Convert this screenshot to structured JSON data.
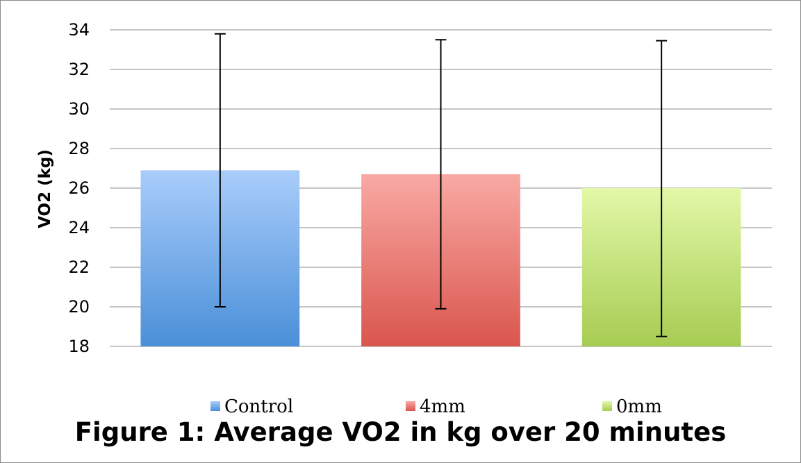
{
  "caption": "Figure 1: Average VO2 in kg over 20 minutes",
  "chart_data": {
    "type": "bar",
    "title": "",
    "xlabel": "",
    "ylabel": "VO2 (kg)",
    "ylim": [
      18,
      34
    ],
    "yticks": [
      18,
      20,
      22,
      24,
      26,
      28,
      30,
      32,
      34
    ],
    "grid": true,
    "legend_position": "bottom",
    "series": [
      {
        "name": "Control",
        "value": 26.9,
        "error_low": 20.0,
        "error_high": 33.8,
        "color_top": "#a9cdfb",
        "color_bottom": "#4a8fd8"
      },
      {
        "name": "4mm",
        "value": 26.7,
        "error_low": 19.9,
        "error_high": 33.5,
        "color_top": "#f9a9a4",
        "color_bottom": "#d9564d"
      },
      {
        "name": "0mm",
        "value": 26.0,
        "error_low": 18.5,
        "error_high": 33.45,
        "color_top": "#e2f8a8",
        "color_bottom": "#a7cc52"
      }
    ]
  }
}
